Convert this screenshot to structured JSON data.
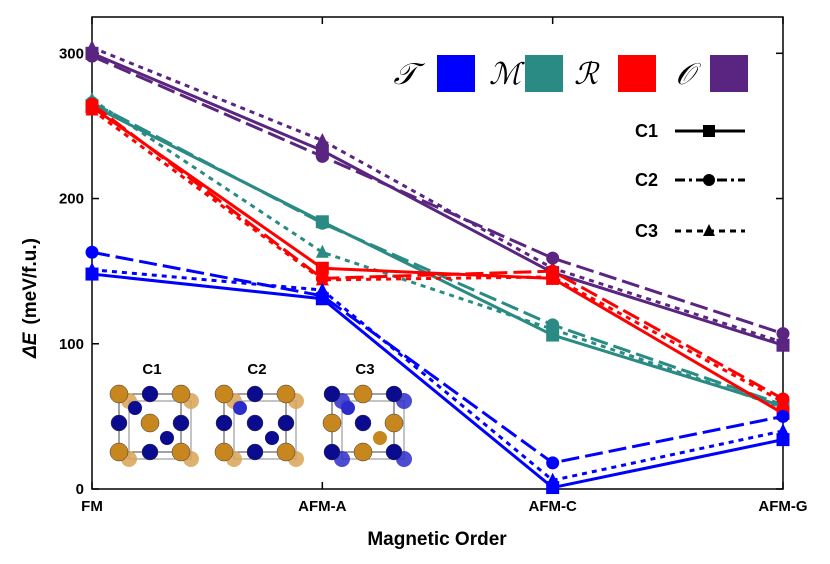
{
  "chart_data": {
    "type": "line",
    "xlabel": "Magnetic Order",
    "ylabel_prefix": "ΔE",
    "ylabel_units": "(meV/f.u.)",
    "categories": [
      "FM",
      "AFM-A",
      "AFM-C",
      "AFM-G"
    ],
    "ylim": [
      0,
      325
    ],
    "yticks": [
      0,
      100,
      200,
      300
    ],
    "legend_phases": [
      {
        "symbol": "𝒯",
        "key": "T",
        "color": "#0000ff"
      },
      {
        "symbol": "ℳ",
        "key": "M",
        "color": "#2a8a84"
      },
      {
        "symbol": "ℛ",
        "key": "R",
        "color": "#ff0000"
      },
      {
        "symbol": "𝒪",
        "key": "O",
        "color": "#5a2580"
      }
    ],
    "legend_configs": [
      {
        "name": "C1",
        "style": "solid",
        "marker": "square"
      },
      {
        "name": "C2",
        "style": "dashdot",
        "marker": "circle"
      },
      {
        "name": "C3",
        "style": "dotted",
        "marker": "triangle"
      }
    ],
    "series": [
      {
        "phase": "T",
        "config": "C1",
        "values": [
          148,
          131,
          1,
          34
        ]
      },
      {
        "phase": "T",
        "config": "C2",
        "values": [
          163,
          133,
          18,
          50
        ]
      },
      {
        "phase": "T",
        "config": "C3",
        "values": [
          151,
          137,
          6,
          40
        ]
      },
      {
        "phase": "M",
        "config": "C1",
        "values": [
          264,
          184,
          106,
          57
        ]
      },
      {
        "phase": "M",
        "config": "C2",
        "values": [
          266,
          183,
          113,
          58
        ]
      },
      {
        "phase": "M",
        "config": "C3",
        "values": [
          268,
          163,
          110,
          56
        ]
      },
      {
        "phase": "R",
        "config": "C1",
        "values": [
          263,
          152,
          145,
          52
        ]
      },
      {
        "phase": "R",
        "config": "C2",
        "values": [
          265,
          145,
          150,
          62
        ]
      },
      {
        "phase": "R",
        "config": "C3",
        "values": [
          261,
          144,
          146,
          60
        ]
      },
      {
        "phase": "O",
        "config": "C1",
        "values": [
          300,
          233,
          149,
          99
        ]
      },
      {
        "phase": "O",
        "config": "C2",
        "values": [
          298,
          229,
          159,
          107
        ]
      },
      {
        "phase": "O",
        "config": "C3",
        "values": [
          304,
          240,
          152,
          101
        ]
      }
    ],
    "inset_labels": [
      "C1",
      "C2",
      "C3"
    ]
  },
  "colors": {
    "gold": "#c8861e",
    "navy": "#0b0b8f",
    "blue": "#2c2ccc"
  }
}
